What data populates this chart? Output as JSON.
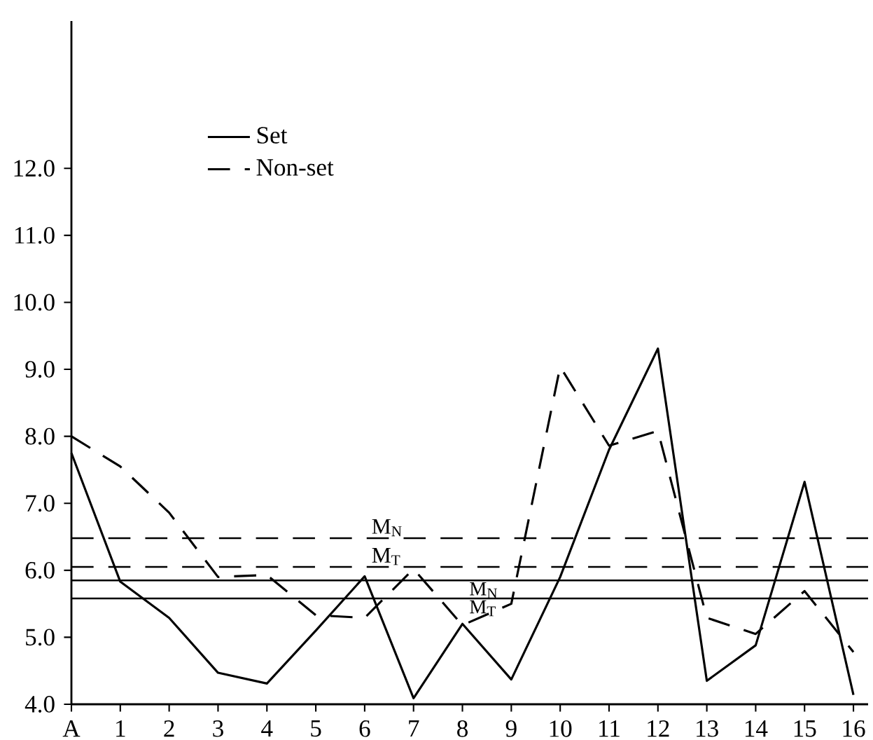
{
  "chart_data": {
    "type": "line",
    "categories": [
      "A",
      "1",
      "2",
      "3",
      "4",
      "5",
      "6",
      "7",
      "8",
      "9",
      "10",
      "11",
      "12",
      "13",
      "14",
      "15",
      "16"
    ],
    "series": [
      {
        "name": "Set",
        "color": "#000000",
        "line_style": "solid",
        "values": [
          7.75,
          5.83,
          5.29,
          4.47,
          4.31,
          5.1,
          5.91,
          4.09,
          5.2,
          4.37,
          5.9,
          7.8,
          9.31,
          4.35,
          4.88,
          7.32,
          4.14
        ]
      },
      {
        "name": "Non-set",
        "color": "#000000",
        "line_style": "dashed",
        "values": [
          8.0,
          7.55,
          6.86,
          5.9,
          5.93,
          5.33,
          5.29,
          6.02,
          5.18,
          5.5,
          9.04,
          7.86,
          8.08,
          5.29,
          5.05,
          5.69,
          4.78
        ]
      }
    ],
    "ylim": [
      4,
      14.2
    ],
    "yticks": [
      {
        "value": 4,
        "label": "4.0"
      },
      {
        "value": 5,
        "label": "5.0"
      },
      {
        "value": 6,
        "label": "6.0"
      },
      {
        "value": 7,
        "label": "7.0"
      },
      {
        "value": 8,
        "label": "8.0"
      },
      {
        "value": 9,
        "label": "9.0"
      },
      {
        "value": 10,
        "label": "10.0"
      },
      {
        "value": 11,
        "label": "11.0"
      },
      {
        "value": 12,
        "label": "12.0"
      }
    ],
    "ref_lines": [
      {
        "axis": "y",
        "value": 6.48,
        "label": "M$_{N}$",
        "line_style": "dashed",
        "color": "#000000"
      },
      {
        "axis": "y",
        "value": 6.05,
        "label": "M$_{T}$",
        "line_style": "dashed",
        "color": "#000000"
      },
      {
        "axis": "y",
        "value": 5.85,
        "label": "M$_{N}$",
        "line_style": "solid",
        "color": "#000000"
      },
      {
        "axis": "y",
        "value": 5.58,
        "label": "M$_{T}$",
        "line_style": "solid",
        "color": "#000000"
      }
    ],
    "legend": "top left",
    "grid": false
  }
}
